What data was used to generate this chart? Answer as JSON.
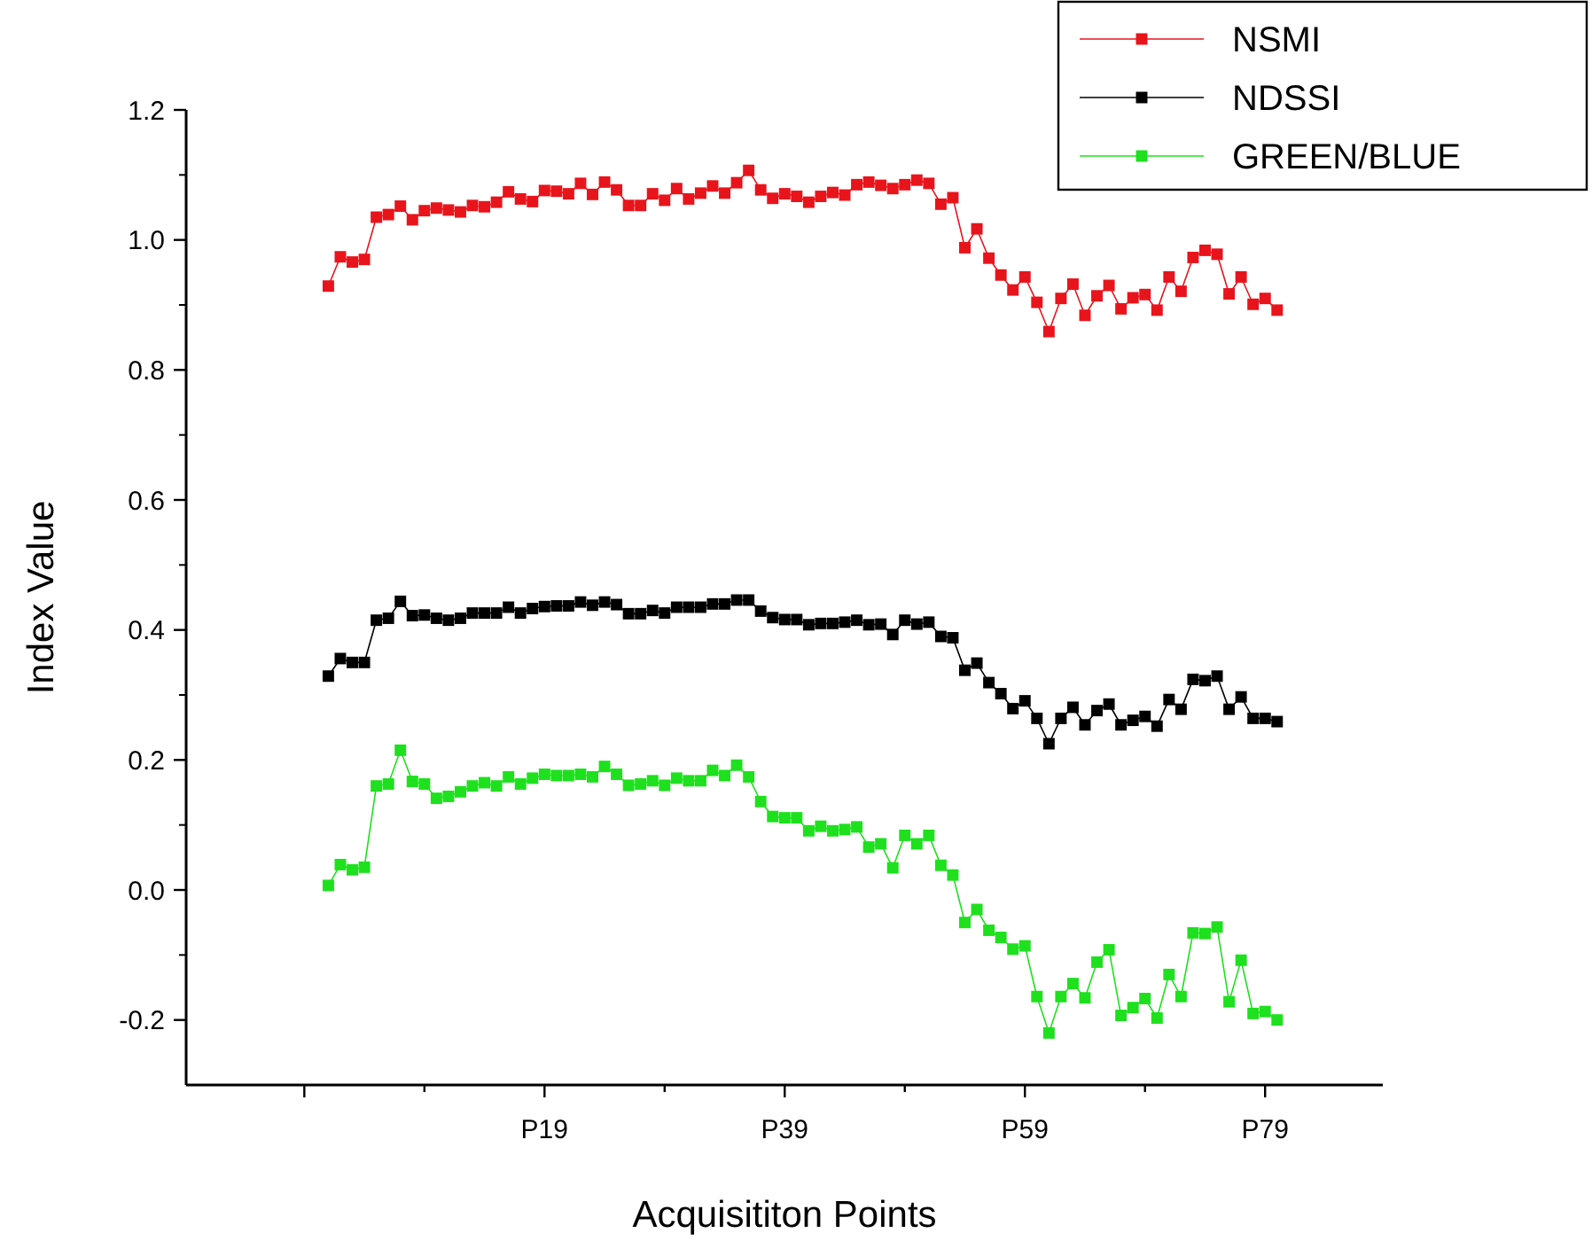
{
  "chart_data": {
    "type": "line",
    "xlabel": "Acquisititon Points",
    "ylabel": "Index Value",
    "categories": [
      null,
      null,
      null,
      null,
      null,
      null,
      null,
      null,
      null,
      null,
      null,
      null,
      null,
      null,
      null,
      null,
      null,
      null,
      "P19",
      null,
      null,
      null,
      null,
      null,
      null,
      null,
      null,
      null,
      null,
      null,
      null,
      null,
      null,
      null,
      null,
      null,
      null,
      null,
      "P39",
      null,
      null,
      null,
      null,
      null,
      null,
      null,
      null,
      null,
      null,
      null,
      null,
      null,
      null,
      null,
      null,
      null,
      null,
      null,
      "P59",
      null,
      null,
      null,
      null,
      null,
      null,
      null,
      null,
      null,
      null,
      null,
      null,
      null,
      null,
      null,
      null,
      null,
      null,
      null,
      "P79",
      null
    ],
    "ylim": [
      -0.3,
      1.2
    ],
    "yticks": [
      -0.2,
      {
        "value": 0,
        "label": "0.0"
      },
      0.2,
      0.4,
      0.6,
      0.8,
      {
        "value": 1,
        "label": "1.0"
      },
      1.2
    ],
    "legend": "top right",
    "marker": "square",
    "line_style": "solid",
    "grid": false,
    "series": [
      {
        "name": "NSMI",
        "color": "#e8141c",
        "values": [
          0.929,
          0.974,
          0.966,
          0.97,
          1.035,
          1.039,
          1.052,
          1.031,
          1.045,
          1.049,
          1.046,
          1.043,
          1.053,
          1.051,
          1.058,
          1.074,
          1.063,
          1.059,
          1.076,
          1.075,
          1.071,
          1.087,
          1.07,
          1.089,
          1.077,
          1.053,
          1.053,
          1.071,
          1.061,
          1.079,
          1.063,
          1.072,
          1.083,
          1.072,
          1.088,
          1.107,
          1.077,
          1.064,
          1.071,
          1.067,
          1.058,
          1.067,
          1.073,
          1.069,
          1.085,
          1.089,
          1.084,
          1.079,
          1.085,
          1.092,
          1.087,
          1.055,
          1.065,
          0.988,
          1.017,
          0.972,
          0.946,
          0.923,
          0.943,
          0.904,
          0.859,
          0.91,
          0.932,
          0.884,
          0.914,
          0.93,
          0.894,
          0.911,
          0.916,
          0.892,
          0.943,
          0.921,
          0.973,
          0.984,
          0.978,
          0.917,
          0.943,
          0.901,
          0.91,
          0.892
        ]
      },
      {
        "name": "NDSSI",
        "color": "#000000",
        "values": [
          0.329,
          0.356,
          0.35,
          0.35,
          0.415,
          0.418,
          0.444,
          0.422,
          0.423,
          0.418,
          0.415,
          0.418,
          0.426,
          0.426,
          0.426,
          0.435,
          0.426,
          0.433,
          0.436,
          0.437,
          0.437,
          0.443,
          0.438,
          0.443,
          0.439,
          0.425,
          0.425,
          0.43,
          0.426,
          0.435,
          0.435,
          0.435,
          0.44,
          0.44,
          0.446,
          0.446,
          0.429,
          0.419,
          0.416,
          0.416,
          0.408,
          0.41,
          0.41,
          0.412,
          0.415,
          0.408,
          0.409,
          0.393,
          0.415,
          0.409,
          0.412,
          0.39,
          0.388,
          0.338,
          0.349,
          0.319,
          0.302,
          0.279,
          0.291,
          0.264,
          0.225,
          0.264,
          0.281,
          0.254,
          0.276,
          0.286,
          0.254,
          0.261,
          0.267,
          0.252,
          0.293,
          0.278,
          0.324,
          0.322,
          0.329,
          0.278,
          0.297,
          0.264,
          0.264,
          0.259
        ]
      },
      {
        "name": "GREEN/BLUE",
        "color": "#1ee01e",
        "values": [
          0.007,
          0.039,
          0.031,
          0.035,
          0.16,
          0.163,
          0.215,
          0.167,
          0.163,
          0.141,
          0.144,
          0.151,
          0.16,
          0.165,
          0.16,
          0.174,
          0.163,
          0.172,
          0.178,
          0.176,
          0.176,
          0.178,
          0.174,
          0.19,
          0.178,
          0.161,
          0.163,
          0.168,
          0.161,
          0.172,
          0.168,
          0.168,
          0.184,
          0.176,
          0.192,
          0.174,
          0.136,
          0.113,
          0.111,
          0.111,
          0.091,
          0.098,
          0.091,
          0.093,
          0.097,
          0.066,
          0.071,
          0.034,
          0.084,
          0.071,
          0.084,
          0.038,
          0.023,
          -0.05,
          -0.03,
          -0.062,
          -0.073,
          -0.091,
          -0.086,
          -0.164,
          -0.22,
          -0.164,
          -0.144,
          -0.166,
          -0.111,
          -0.092,
          -0.193,
          -0.181,
          -0.167,
          -0.197,
          -0.13,
          -0.164,
          -0.066,
          -0.067,
          -0.057,
          -0.172,
          -0.108,
          -0.19,
          -0.187,
          -0.2
        ]
      }
    ]
  }
}
